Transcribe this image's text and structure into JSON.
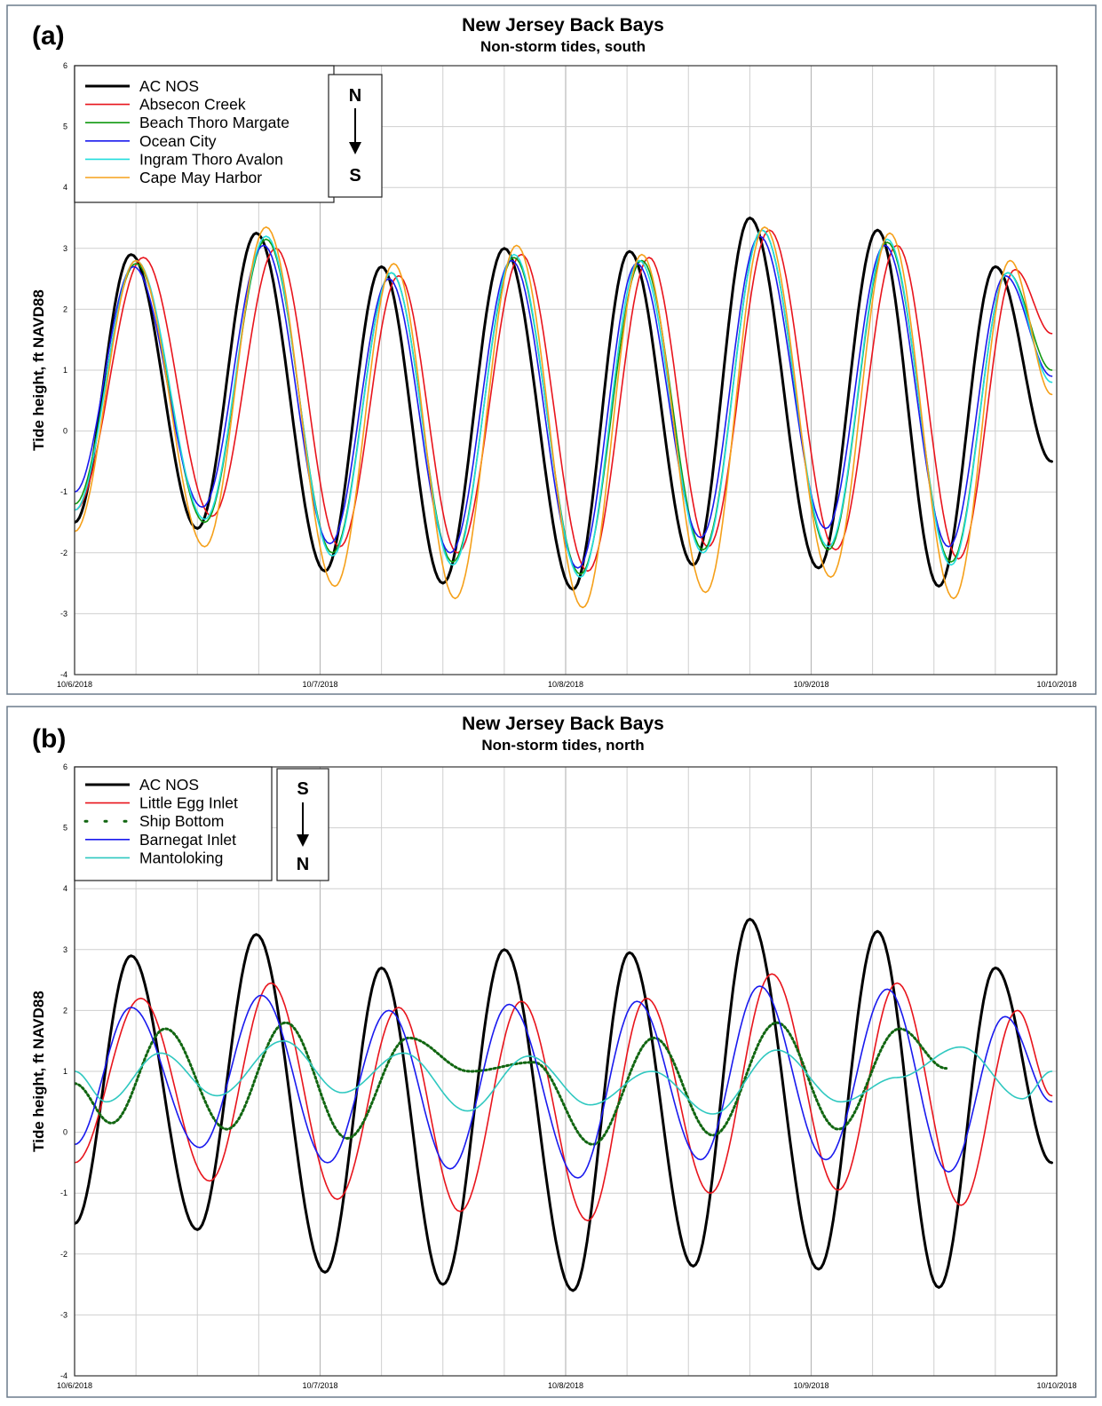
{
  "chart_data": [
    {
      "panel_label": "(a)",
      "type": "line",
      "title": "New Jersey Back Bays",
      "subtitle": "Non-storm tides, south",
      "xlabel": "",
      "ylabel": "Tide height, ft NAVD88",
      "x_tick_labels": [
        "10/6/2018",
        "10/7/2018",
        "10/8/2018",
        "10/9/2018",
        "10/10/2018"
      ],
      "xlim": [
        "2018-10-06",
        "2018-10-10"
      ],
      "ylim": [
        -4,
        6
      ],
      "y_ticks": [
        -4,
        -3,
        -2,
        -1,
        0,
        1,
        2,
        3,
        4,
        5,
        6
      ],
      "grid": true,
      "legend_position": "top-left",
      "compass": {
        "top": "N",
        "bottom": "S"
      },
      "x_unit": "days since 10/6/2018",
      "series": [
        {
          "name": "AC NOS",
          "color": "#000000",
          "style": "solid-thick",
          "x": [
            0.0,
            0.23,
            0.5,
            0.74,
            1.02,
            1.25,
            1.5,
            1.75,
            2.03,
            2.26,
            2.52,
            2.75,
            3.03,
            3.27,
            3.52,
            3.75,
            3.98
          ],
          "values": [
            -1.5,
            2.9,
            -1.6,
            3.25,
            -2.3,
            2.7,
            -2.5,
            3.0,
            -2.6,
            2.95,
            -2.2,
            3.5,
            -2.25,
            3.3,
            -2.55,
            2.7,
            -0.5
          ]
        },
        {
          "name": "Absecon Creek",
          "color": "#e8141c",
          "style": "solid",
          "x": [
            0.0,
            0.28,
            0.56,
            0.82,
            1.08,
            1.32,
            1.56,
            1.82,
            2.09,
            2.34,
            2.58,
            2.83,
            3.1,
            3.35,
            3.6,
            3.83,
            3.98
          ],
          "values": [
            -1.3,
            2.85,
            -1.4,
            3.0,
            -1.9,
            2.55,
            -2.0,
            2.9,
            -2.3,
            2.85,
            -1.9,
            3.3,
            -1.95,
            3.05,
            -2.1,
            2.65,
            1.6
          ]
        },
        {
          "name": "Beach Thoro Margate",
          "color": "#119911",
          "style": "solid",
          "x": [
            0.0,
            0.25,
            0.53,
            0.78,
            1.05,
            1.29,
            1.54,
            1.79,
            2.06,
            2.31,
            2.56,
            2.8,
            3.07,
            3.31,
            3.57,
            3.8,
            3.98
          ],
          "values": [
            -1.2,
            2.75,
            -1.5,
            3.15,
            -2.0,
            2.6,
            -2.15,
            2.85,
            -2.35,
            2.8,
            -1.95,
            3.3,
            -1.95,
            3.1,
            -2.15,
            2.6,
            1.0
          ]
        },
        {
          "name": "Ocean City",
          "color": "#1a1aee",
          "style": "solid",
          "x": [
            0.0,
            0.24,
            0.52,
            0.77,
            1.04,
            1.28,
            1.53,
            1.78,
            2.05,
            2.29,
            2.55,
            2.79,
            3.06,
            3.3,
            3.56,
            3.79,
            3.98
          ],
          "values": [
            -1.0,
            2.7,
            -1.25,
            3.05,
            -1.85,
            2.5,
            -2.0,
            2.8,
            -2.25,
            2.75,
            -1.75,
            3.2,
            -1.6,
            3.05,
            -1.9,
            2.55,
            0.9
          ]
        },
        {
          "name": "Ingram Thoro Avalon",
          "color": "#22dddd",
          "style": "solid",
          "x": [
            0.0,
            0.25,
            0.53,
            0.78,
            1.05,
            1.29,
            1.54,
            1.79,
            2.06,
            2.3,
            2.56,
            2.8,
            3.07,
            3.31,
            3.57,
            3.8,
            3.98
          ],
          "values": [
            -1.3,
            2.8,
            -1.45,
            3.2,
            -2.05,
            2.6,
            -2.2,
            2.9,
            -2.4,
            2.8,
            -2.0,
            3.3,
            -1.9,
            3.15,
            -2.2,
            2.6,
            0.8
          ]
        },
        {
          "name": "Cape May Harbor",
          "color": "#f5a01a",
          "style": "solid",
          "x": [
            0.0,
            0.25,
            0.53,
            0.78,
            1.06,
            1.3,
            1.55,
            1.8,
            2.07,
            2.31,
            2.57,
            2.81,
            3.08,
            3.32,
            3.58,
            3.81,
            3.98
          ],
          "values": [
            -1.65,
            2.8,
            -1.9,
            3.35,
            -2.55,
            2.75,
            -2.75,
            3.05,
            -2.9,
            2.9,
            -2.65,
            3.35,
            -2.4,
            3.25,
            -2.75,
            2.8,
            0.6
          ]
        }
      ]
    },
    {
      "panel_label": "(b)",
      "type": "line",
      "title": "New Jersey Back Bays",
      "subtitle": "Non-storm tides, north",
      "xlabel": "",
      "ylabel": "Tide height, ft NAVD88",
      "x_tick_labels": [
        "10/6/2018",
        "10/7/2018",
        "10/8/2018",
        "10/9/2018",
        "10/10/2018"
      ],
      "xlim": [
        "2018-10-06",
        "2018-10-10"
      ],
      "ylim": [
        -4,
        6
      ],
      "y_ticks": [
        -4,
        -3,
        -2,
        -1,
        0,
        1,
        2,
        3,
        4,
        5,
        6
      ],
      "grid": true,
      "legend_position": "top-left",
      "compass": {
        "top": "S",
        "bottom": "N"
      },
      "x_unit": "days since 10/6/2018",
      "series": [
        {
          "name": "AC NOS",
          "color": "#000000",
          "style": "solid-thick",
          "x": [
            0.0,
            0.23,
            0.5,
            0.74,
            1.02,
            1.25,
            1.5,
            1.75,
            2.03,
            2.26,
            2.52,
            2.75,
            3.03,
            3.27,
            3.52,
            3.75,
            3.98
          ],
          "values": [
            -1.5,
            2.9,
            -1.6,
            3.25,
            -2.3,
            2.7,
            -2.5,
            3.0,
            -2.6,
            2.95,
            -2.2,
            3.5,
            -2.25,
            3.3,
            -2.55,
            2.7,
            -0.5
          ]
        },
        {
          "name": "Little Egg Inlet",
          "color": "#e8141c",
          "style": "solid",
          "x": [
            0.0,
            0.27,
            0.55,
            0.8,
            1.07,
            1.32,
            1.57,
            1.82,
            2.09,
            2.33,
            2.59,
            2.84,
            3.11,
            3.35,
            3.61,
            3.84,
            3.98
          ],
          "values": [
            -0.5,
            2.2,
            -0.8,
            2.45,
            -1.1,
            2.05,
            -1.3,
            2.15,
            -1.45,
            2.2,
            -1.0,
            2.6,
            -0.95,
            2.45,
            -1.2,
            2.0,
            0.6
          ]
        },
        {
          "name": "Ship Bottom",
          "color": "#116611",
          "style": "dotted",
          "x": [
            0.0,
            0.15,
            0.37,
            0.62,
            0.86,
            1.11,
            1.36,
            1.61,
            1.87,
            2.11,
            2.36,
            2.6,
            2.86,
            3.11,
            3.36,
            3.55
          ],
          "values": [
            0.8,
            0.15,
            1.7,
            0.05,
            1.8,
            -0.1,
            1.55,
            1.0,
            1.15,
            -0.2,
            1.55,
            -0.05,
            1.8,
            0.05,
            1.7,
            1.05
          ]
        },
        {
          "name": "Barnegat Inlet",
          "color": "#1a1aee",
          "style": "solid",
          "x": [
            0.0,
            0.23,
            0.51,
            0.76,
            1.03,
            1.28,
            1.53,
            1.77,
            2.05,
            2.29,
            2.55,
            2.79,
            3.06,
            3.31,
            3.56,
            3.79,
            3.98
          ],
          "values": [
            -0.2,
            2.05,
            -0.25,
            2.25,
            -0.5,
            2.0,
            -0.6,
            2.1,
            -0.75,
            2.15,
            -0.45,
            2.4,
            -0.45,
            2.35,
            -0.65,
            1.9,
            0.5
          ]
        },
        {
          "name": "Mantoloking",
          "color": "#2fc8c0",
          "style": "solid",
          "x": [
            0.0,
            0.13,
            0.35,
            0.58,
            0.85,
            1.09,
            1.34,
            1.6,
            1.85,
            2.1,
            2.35,
            2.6,
            2.86,
            3.12,
            3.35,
            3.61,
            3.86,
            3.98
          ],
          "values": [
            1.0,
            0.5,
            1.3,
            0.6,
            1.5,
            0.65,
            1.3,
            0.35,
            1.25,
            0.45,
            1.0,
            0.3,
            1.35,
            0.5,
            0.9,
            1.4,
            0.55,
            1.0
          ]
        }
      ]
    }
  ]
}
